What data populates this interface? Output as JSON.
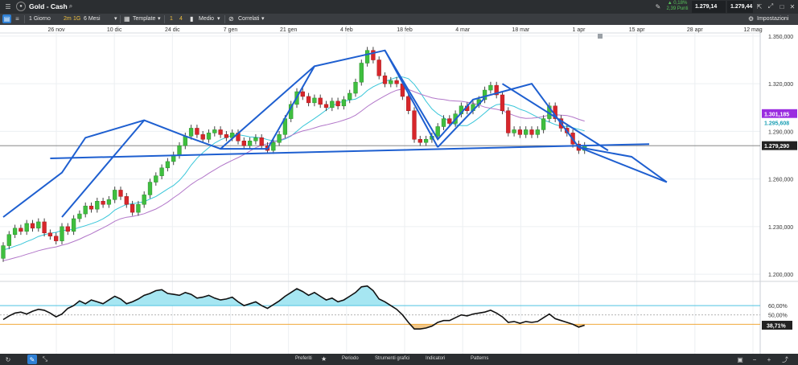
{
  "header": {
    "instrument": "Gold - Cash",
    "change_pct": "▲ 0,18%",
    "change_points": "2,39 Punti",
    "sell_price": "1.279,14",
    "buy_price": "1.279,44"
  },
  "toolbar": {
    "timeframe": "1 Giorno",
    "tf_2m": "2m",
    "tf_1g": "1G",
    "range": "6 Mesi",
    "templates": "Template",
    "count_1": "1",
    "count_4": "4",
    "average": "Medio",
    "correlated": "Correlati",
    "settings": "Impostazioni"
  },
  "bottombar": {
    "favorites": "Preferiti",
    "period": "Periodo",
    "drawing_tools": "Strumenti grafici",
    "indicators": "Indicatori",
    "patterns": "Patterns"
  },
  "chart_data": {
    "type": "candlestick",
    "x_tick_labels": [
      "26 nov",
      "10 dic",
      "24 dic",
      "7 gen",
      "21 gen",
      "4 feb",
      "18 feb",
      "4 mar",
      "18 mar",
      "1 apr",
      "15 apr",
      "28 apr",
      "12 mag"
    ],
    "y_tick_labels": [
      "1.350,000",
      "1.320,000",
      "1.290,000",
      "1.260,000",
      "1.230,000",
      "1.200,000"
    ],
    "ylim": [
      1196,
      1353
    ],
    "price_labels": {
      "current": "1.279,290",
      "ma_slow": "1.301,185",
      "ma_fast": "1.295,608"
    },
    "candles": [
      [
        1210,
        1218
      ],
      [
        1218,
        1225
      ],
      [
        1225,
        1229
      ],
      [
        1229,
        1227
      ],
      [
        1227,
        1232
      ],
      [
        1232,
        1229
      ],
      [
        1229,
        1233
      ],
      [
        1233,
        1226
      ],
      [
        1226,
        1224
      ],
      [
        1224,
        1221
      ],
      [
        1221,
        1230
      ],
      [
        1230,
        1227
      ],
      [
        1227,
        1235
      ],
      [
        1235,
        1238
      ],
      [
        1238,
        1243
      ],
      [
        1243,
        1241
      ],
      [
        1241,
        1246
      ],
      [
        1246,
        1244
      ],
      [
        1244,
        1247
      ],
      [
        1247,
        1253
      ],
      [
        1253,
        1249
      ],
      [
        1249,
        1244
      ],
      [
        1244,
        1239
      ],
      [
        1239,
        1244
      ],
      [
        1244,
        1250
      ],
      [
        1250,
        1258
      ],
      [
        1258,
        1262
      ],
      [
        1262,
        1267
      ],
      [
        1267,
        1271
      ],
      [
        1271,
        1275
      ],
      [
        1275,
        1281
      ],
      [
        1281,
        1287
      ],
      [
        1287,
        1292
      ],
      [
        1292,
        1288
      ],
      [
        1288,
        1285
      ],
      [
        1285,
        1289
      ],
      [
        1289,
        1291
      ],
      [
        1291,
        1288
      ],
      [
        1288,
        1286
      ],
      [
        1286,
        1289
      ],
      [
        1289,
        1284
      ],
      [
        1284,
        1281
      ],
      [
        1281,
        1284
      ],
      [
        1284,
        1286
      ],
      [
        1286,
        1281
      ],
      [
        1281,
        1278
      ],
      [
        1278,
        1283
      ],
      [
        1283,
        1288
      ],
      [
        1288,
        1298
      ],
      [
        1298,
        1307
      ],
      [
        1307,
        1315
      ],
      [
        1315,
        1312
      ],
      [
        1312,
        1308
      ],
      [
        1308,
        1311
      ],
      [
        1311,
        1307
      ],
      [
        1307,
        1305
      ],
      [
        1305,
        1309
      ],
      [
        1309,
        1306
      ],
      [
        1306,
        1310
      ],
      [
        1310,
        1314
      ],
      [
        1314,
        1321
      ],
      [
        1321,
        1333
      ],
      [
        1333,
        1341
      ],
      [
        1341,
        1335
      ],
      [
        1335,
        1325
      ],
      [
        1325,
        1320
      ],
      [
        1320,
        1322
      ],
      [
        1322,
        1320
      ],
      [
        1320,
        1312
      ],
      [
        1312,
        1303
      ],
      [
        1303,
        1285
      ],
      [
        1285,
        1283
      ],
      [
        1283,
        1285
      ],
      [
        1285,
        1287
      ],
      [
        1287,
        1293
      ],
      [
        1293,
        1298
      ],
      [
        1298,
        1295
      ],
      [
        1295,
        1301
      ],
      [
        1301,
        1306
      ],
      [
        1306,
        1303
      ],
      [
        1303,
        1307
      ],
      [
        1307,
        1310
      ],
      [
        1310,
        1316
      ],
      [
        1316,
        1319
      ],
      [
        1319,
        1313
      ],
      [
        1313,
        1303
      ],
      [
        1303,
        1289
      ],
      [
        1289,
        1291
      ],
      [
        1291,
        1288
      ],
      [
        1288,
        1291
      ],
      [
        1291,
        1288
      ],
      [
        1288,
        1291
      ],
      [
        1291,
        1298
      ],
      [
        1298,
        1306
      ],
      [
        1306,
        1298
      ],
      [
        1298,
        1292
      ],
      [
        1292,
        1289
      ],
      [
        1289,
        1282
      ],
      [
        1282,
        1278
      ],
      [
        1278,
        1281
      ]
    ],
    "pattern_lines": [
      [
        [
          0,
          1236
        ],
        [
          10,
          1264
        ],
        [
          14,
          1286
        ],
        [
          24,
          1297
        ],
        [
          31,
          1287
        ],
        [
          37,
          1279
        ],
        [
          45,
          1279
        ],
        [
          53,
          1331
        ],
        [
          65,
          1341
        ],
        [
          74,
          1285
        ],
        [
          80,
          1310
        ],
        [
          90,
          1320
        ],
        [
          98,
          1280
        ],
        [
          107,
          1274
        ],
        [
          113,
          1258
        ]
      ],
      [
        [
          10,
          1236
        ],
        [
          24,
          1297
        ]
      ],
      [
        [
          37,
          1279
        ],
        [
          53,
          1331
        ]
      ],
      [
        [
          65,
          1341
        ],
        [
          74,
          1280
        ]
      ],
      [
        [
          74,
          1280
        ],
        [
          82,
          1311
        ]
      ],
      [
        [
          85,
          1320
        ],
        [
          103,
          1278
        ]
      ],
      [
        [
          98,
          1280
        ],
        [
          113,
          1258
        ]
      ],
      [
        [
          8,
          1273
        ],
        [
          110,
          1282
        ]
      ]
    ],
    "rsi": {
      "levels": [
        "60,00%",
        "50,00%"
      ],
      "current_label": "38,71%",
      "values": [
        45,
        49,
        52,
        53,
        51,
        54,
        56,
        55,
        52,
        48,
        51,
        57,
        60,
        65,
        62,
        66,
        64,
        62,
        66,
        70,
        67,
        62,
        64,
        67,
        71,
        73,
        76,
        77,
        73,
        72,
        71,
        74,
        72,
        68,
        69,
        71,
        68,
        66,
        67,
        69,
        64,
        60,
        62,
        64,
        60,
        57,
        61,
        65,
        70,
        74,
        78,
        75,
        71,
        74,
        70,
        66,
        68,
        64,
        66,
        70,
        74,
        80,
        81,
        76,
        67,
        64,
        60,
        56,
        50,
        42,
        35,
        35,
        36,
        38,
        42,
        44,
        44,
        47,
        50,
        49,
        51,
        52,
        53,
        55,
        52,
        48,
        42,
        43,
        41,
        43,
        42,
        43,
        47,
        51,
        46,
        44,
        42,
        40,
        37,
        39
      ]
    }
  }
}
